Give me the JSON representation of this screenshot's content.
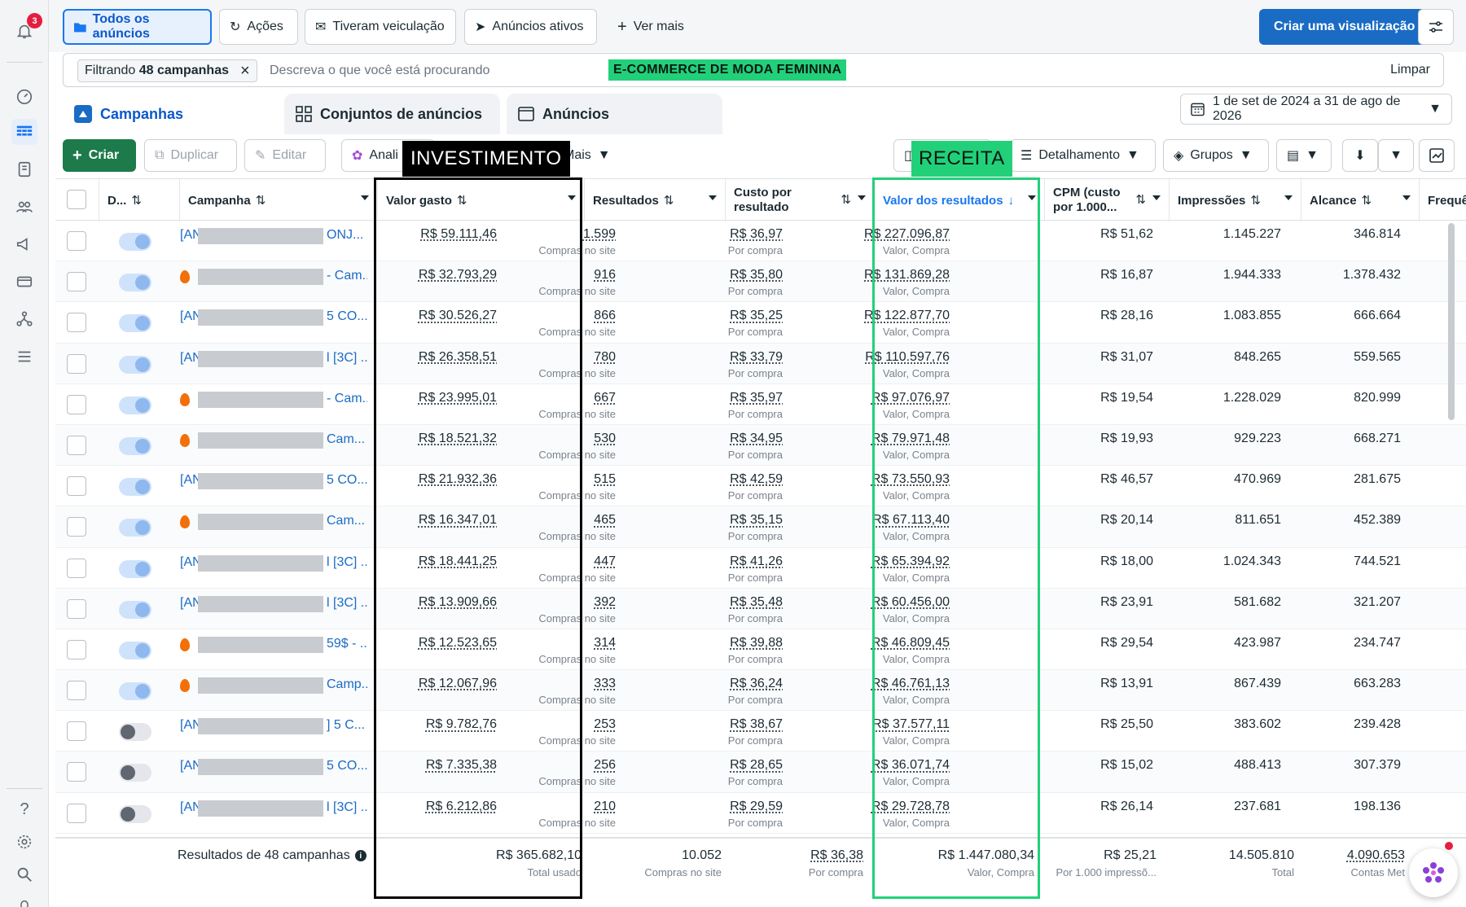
{
  "rail": {
    "notifications_count": "3",
    "icons": [
      "bell-icon",
      "dashboard-icon",
      "table-icon",
      "pages-icon",
      "audience-icon",
      "megaphone-icon",
      "card-icon",
      "network-icon",
      "menu-icon",
      "help-icon",
      "settings-icon",
      "search-icon",
      "bug-icon"
    ]
  },
  "topbar": {
    "views": [
      "Todos os anúncios",
      "Ações",
      "Tiveram veiculação",
      "Anúncios ativos"
    ],
    "more": "Ver mais",
    "create_view": "Criar uma visualização"
  },
  "filter": {
    "chip_prefix": "Filtrando",
    "chip_count": "48 campanhas",
    "placeholder": "Descreva o que você está procurando",
    "highlight": "E-COMMERCE DE MODA FEMININA",
    "clear": "Limpar"
  },
  "tabs": [
    "Campanhas",
    "Conjuntos de anúncios",
    "Anúncios"
  ],
  "date_range": "1 de set de 2024 a 31 de ago de 2026",
  "toolbar": {
    "create": "Criar",
    "duplicate": "Duplicar",
    "edit": "Editar",
    "analyze": "Anali",
    "more": "Mais",
    "breakdown": "Detalhamento",
    "groups": "Grupos"
  },
  "annotations": {
    "investment": "INVESTIMENTO",
    "revenue": "RECEITA"
  },
  "table": {
    "headers": {
      "delivery": "D...",
      "campaign": "Campanha",
      "spend": "Valor gasto",
      "results": "Resultados",
      "cost_per_result_1": "Custo por",
      "cost_per_result_2": "resultado",
      "results_value": "Valor dos resultados",
      "cpm_1": "CPM (custo",
      "cpm_2": "por 1.000...",
      "impressions": "Impressões",
      "reach": "Alcance",
      "frequency": "Frequê"
    },
    "sub_labels": {
      "results": "Compras no site",
      "cost": "Por compra",
      "value": "Valor, Compra"
    },
    "rows": [
      {
        "on": true,
        "fire": false,
        "pre": "[AN",
        "suf": "ONJ...",
        "spend": "R$ 59.111,46",
        "results": "1.599",
        "cost": "R$ 36,97",
        "value": "R$ 227.096,87",
        "cpm": "R$ 51,62",
        "impr": "1.145.227",
        "reach": "346.814"
      },
      {
        "on": true,
        "fire": true,
        "pre": "",
        "suf": "- Cam...",
        "spend": "R$ 32.793,29",
        "results": "916",
        "cost": "R$ 35,80",
        "value": "R$ 131.869,28",
        "cpm": "R$ 16,87",
        "impr": "1.944.333",
        "reach": "1.378.432"
      },
      {
        "on": true,
        "fire": false,
        "pre": "[AN",
        "suf": "5 CO...",
        "spend": "R$ 30.526,27",
        "results": "866",
        "cost": "R$ 35,25",
        "value": "R$ 122.877,70",
        "cpm": "R$ 28,16",
        "impr": "1.083.855",
        "reach": "666.664"
      },
      {
        "on": true,
        "fire": false,
        "pre": "[AN",
        "suf": "l [3C] ...",
        "spend": "R$ 26.358,51",
        "results": "780",
        "cost": "R$ 33,79",
        "value": "R$ 110.597,76",
        "cpm": "R$ 31,07",
        "impr": "848.265",
        "reach": "559.565"
      },
      {
        "on": true,
        "fire": true,
        "pre": "",
        "suf": "- Cam...",
        "spend": "R$ 23.995,01",
        "results": "667",
        "cost": "R$ 35,97",
        "value": "R$ 97.076,97",
        "cpm": "R$ 19,54",
        "impr": "1.228.029",
        "reach": "820.999"
      },
      {
        "on": true,
        "fire": true,
        "pre": "",
        "suf": "Cam...",
        "spend": "R$ 18.521,32",
        "results": "530",
        "cost": "R$ 34,95",
        "value": "R$ 79.971,48",
        "cpm": "R$ 19,93",
        "impr": "929.223",
        "reach": "668.271"
      },
      {
        "on": true,
        "fire": false,
        "pre": "[AN",
        "suf": "5 CO...",
        "spend": "R$ 21.932,36",
        "results": "515",
        "cost": "R$ 42,59",
        "value": "R$ 73.550,93",
        "cpm": "R$ 46,57",
        "impr": "470.969",
        "reach": "281.675"
      },
      {
        "on": true,
        "fire": true,
        "pre": "",
        "suf": "Cam...",
        "spend": "R$ 16.347,01",
        "results": "465",
        "cost": "R$ 35,15",
        "value": "R$ 67.113,40",
        "cpm": "R$ 20,14",
        "impr": "811.651",
        "reach": "452.389"
      },
      {
        "on": true,
        "fire": false,
        "pre": "[AN",
        "suf": "l [3C] ...",
        "spend": "R$ 18.441,25",
        "results": "447",
        "cost": "R$ 41,26",
        "value": "R$ 65.394,92",
        "cpm": "R$ 18,00",
        "impr": "1.024.343",
        "reach": "744.521"
      },
      {
        "on": true,
        "fire": false,
        "pre": "[AN",
        "suf": "l [3C] ...",
        "spend": "R$ 13.909,66",
        "results": "392",
        "cost": "R$ 35,48",
        "value": "R$ 60.456,00",
        "cpm": "R$ 23,91",
        "impr": "581.682",
        "reach": "321.207"
      },
      {
        "on": true,
        "fire": true,
        "pre": "",
        "suf": "59$ - ...",
        "spend": "R$ 12.523,65",
        "results": "314",
        "cost": "R$ 39,88",
        "value": "R$ 46.809,45",
        "cpm": "R$ 29,54",
        "impr": "423.987",
        "reach": "234.747"
      },
      {
        "on": true,
        "fire": true,
        "pre": "",
        "suf": "Camp...",
        "spend": "R$ 12.067,96",
        "results": "333",
        "cost": "R$ 36,24",
        "value": "R$ 46.761,13",
        "cpm": "R$ 13,91",
        "impr": "867.439",
        "reach": "663.283"
      },
      {
        "on": false,
        "fire": false,
        "pre": "[AN",
        "suf": "] 5 C...",
        "spend": "R$ 9.782,76",
        "results": "253",
        "cost": "R$ 38,67",
        "value": "R$ 37.577,11",
        "cpm": "R$ 25,50",
        "impr": "383.602",
        "reach": "239.428"
      },
      {
        "on": false,
        "fire": false,
        "pre": "[AN",
        "suf": "5 CO...",
        "spend": "R$ 7.335,38",
        "results": "256",
        "cost": "R$ 28,65",
        "value": "R$ 36.071,74",
        "cpm": "R$ 15,02",
        "impr": "488.413",
        "reach": "307.379"
      },
      {
        "on": false,
        "fire": false,
        "pre": "[AN",
        "suf": "l [3C] ...",
        "spend": "R$ 6.212,86",
        "results": "210",
        "cost": "R$ 29,59",
        "value": "R$ 29.728,78",
        "cpm": "R$ 26,14",
        "impr": "237.681",
        "reach": "198.136"
      }
    ],
    "totals": {
      "label": "Resultados de 48 campanhas",
      "spend": "R$ 365.682,10",
      "spend_sub": "Total usado",
      "results": "10.052",
      "results_sub": "Compras no site",
      "cost": "R$ 36,38",
      "cost_sub": "Por compra",
      "value": "R$ 1.447.080,34",
      "value_sub": "Valor, Compra",
      "cpm": "R$ 25,21",
      "cpm_sub": "Por 1.000 impressõ...",
      "impr": "14.505.810",
      "impr_sub": "Total",
      "reach": "4.090.653",
      "reach_sub": "Contas Met"
    }
  }
}
